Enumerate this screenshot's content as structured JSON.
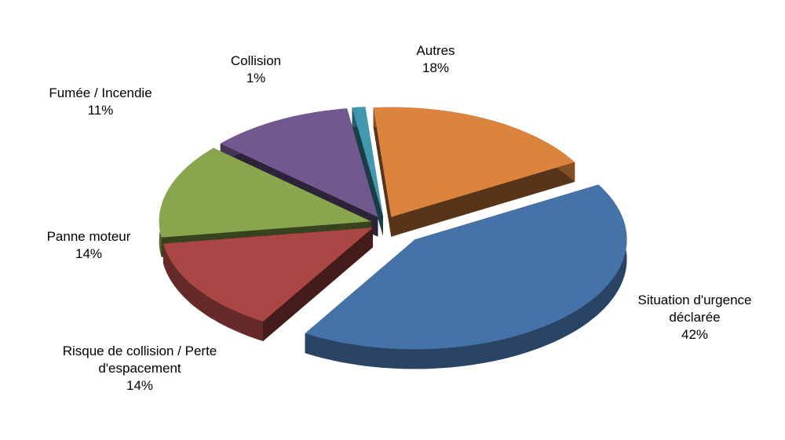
{
  "chart_data": {
    "type": "pie3d",
    "categories": [
      "Situation d'urgence déclarée",
      "Risque de collision / Perte d'espacement",
      "Panne moteur",
      "Fumée / Incendie",
      "Collision",
      "Autres"
    ],
    "values": [
      42,
      14,
      14,
      11,
      1,
      18
    ],
    "value_labels": [
      "42%",
      "14%",
      "14%",
      "11%",
      "1%",
      "18%"
    ],
    "colors": [
      "#4572A7",
      "#AA4643",
      "#89A54E",
      "#71588F",
      "#4198AF",
      "#DB843D"
    ]
  }
}
